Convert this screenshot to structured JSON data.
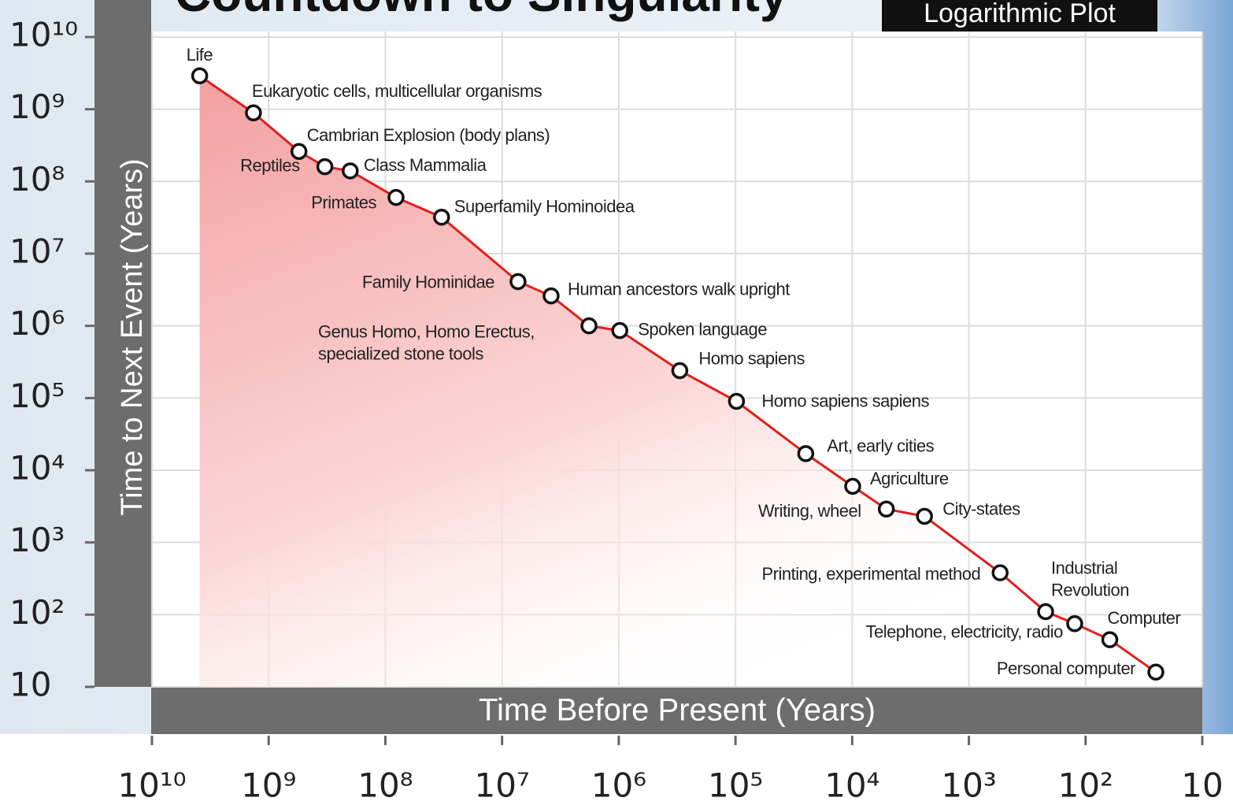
{
  "chart_data": {
    "type": "line",
    "title": "Countdown to Singularity",
    "subtitle": "Logarithmic Plot",
    "x_label": "Time Before Present (Years)",
    "y_label": "Time to Next Event (Years)",
    "log_x": true,
    "log_y": true,
    "grid": true,
    "color": "#e0201b",
    "xlim": [
      10000000000,
      10
    ],
    "ylim": [
      10,
      10000000000
    ],
    "xticks": [
      {
        "value": 10000000000,
        "label": "10¹⁰"
      },
      {
        "value": 1000000000,
        "label": "10⁹"
      },
      {
        "value": 100000000,
        "label": "10⁸"
      },
      {
        "value": 10000000,
        "label": "10⁷"
      },
      {
        "value": 1000000,
        "label": "10⁶"
      },
      {
        "value": 100000,
        "label": "10⁵"
      },
      {
        "value": 10000,
        "label": "10⁴"
      },
      {
        "value": 1000,
        "label": "10³"
      },
      {
        "value": 100,
        "label": "10²"
      },
      10
    ],
    "yticks": [
      {
        "value": 10000000000,
        "label": "10¹⁰"
      },
      {
        "value": 1000000000,
        "label": "10⁹"
      },
      {
        "value": 100000000,
        "label": "10⁸"
      },
      {
        "value": 10000000,
        "label": "10⁷"
      },
      {
        "value": 1000000,
        "label": "10⁶"
      },
      {
        "value": 100000,
        "label": "10⁵"
      },
      {
        "value": 10000,
        "label": "10⁴"
      },
      {
        "value": 1000,
        "label": "10³"
      },
      {
        "value": 100,
        "label": "10²"
      },
      10
    ],
    "points": [
      {
        "label": [
          "Life"
        ],
        "x": 3900000000,
        "y": 2900000000
      },
      {
        "label": [
          "Eukaryotic cells, multicellular organisms"
        ],
        "x": 1350000000,
        "y": 890000000
      },
      {
        "label": [
          "Cambrian Explosion (body plans)"
        ],
        "x": 550000000,
        "y": 260000000
      },
      {
        "label": [
          "Reptiles"
        ],
        "x": 330000000,
        "y": 160000000
      },
      {
        "label": [
          "Class Mammalia"
        ],
        "x": 200000000,
        "y": 140000000
      },
      {
        "label": [
          "Primates"
        ],
        "x": 81000000,
        "y": 60000000
      },
      {
        "label": [
          "Superfamily Hominoidea"
        ],
        "x": 33000000,
        "y": 32000000
      },
      {
        "label": [
          "Family Hominidae"
        ],
        "x": 7300000,
        "y": 4100000
      },
      {
        "label": [
          "Human ancestors walk upright"
        ],
        "x": 3800000,
        "y": 2600000
      },
      {
        "label": [
          "Genus Homo, Homo Erectus,",
          "specialized stone tools"
        ],
        "x": 1800000,
        "y": 1000000
      },
      {
        "label": [
          "Spoken language"
        ],
        "x": 980000,
        "y": 860000
      },
      {
        "label": [
          "Homo sapiens"
        ],
        "x": 300000,
        "y": 240000
      },
      {
        "label": [
          "Homo sapiens sapiens"
        ],
        "x": 98000,
        "y": 90000
      },
      {
        "label": [
          "Art, early cities"
        ],
        "x": 25000,
        "y": 17000
      },
      {
        "label": [
          "Agriculture"
        ],
        "x": 9900,
        "y": 6000
      },
      {
        "label": [
          "Writing, wheel"
        ],
        "x": 5100,
        "y": 2900
      },
      {
        "label": [
          "City-states"
        ],
        "x": 2400,
        "y": 2300
      },
      {
        "label": [
          "Printing, experimental method"
        ],
        "x": 540,
        "y": 380
      },
      {
        "label": [
          "Industrial",
          "Revolution"
        ],
        "x": 220,
        "y": 110
      },
      {
        "label": [
          "Telephone,  electricity, radio"
        ],
        "x": 124,
        "y": 75
      },
      {
        "label": [
          "Computer"
        ],
        "x": 62,
        "y": 45
      },
      {
        "label": [
          "Personal computer"
        ],
        "x": 25,
        "y": 16
      }
    ]
  }
}
